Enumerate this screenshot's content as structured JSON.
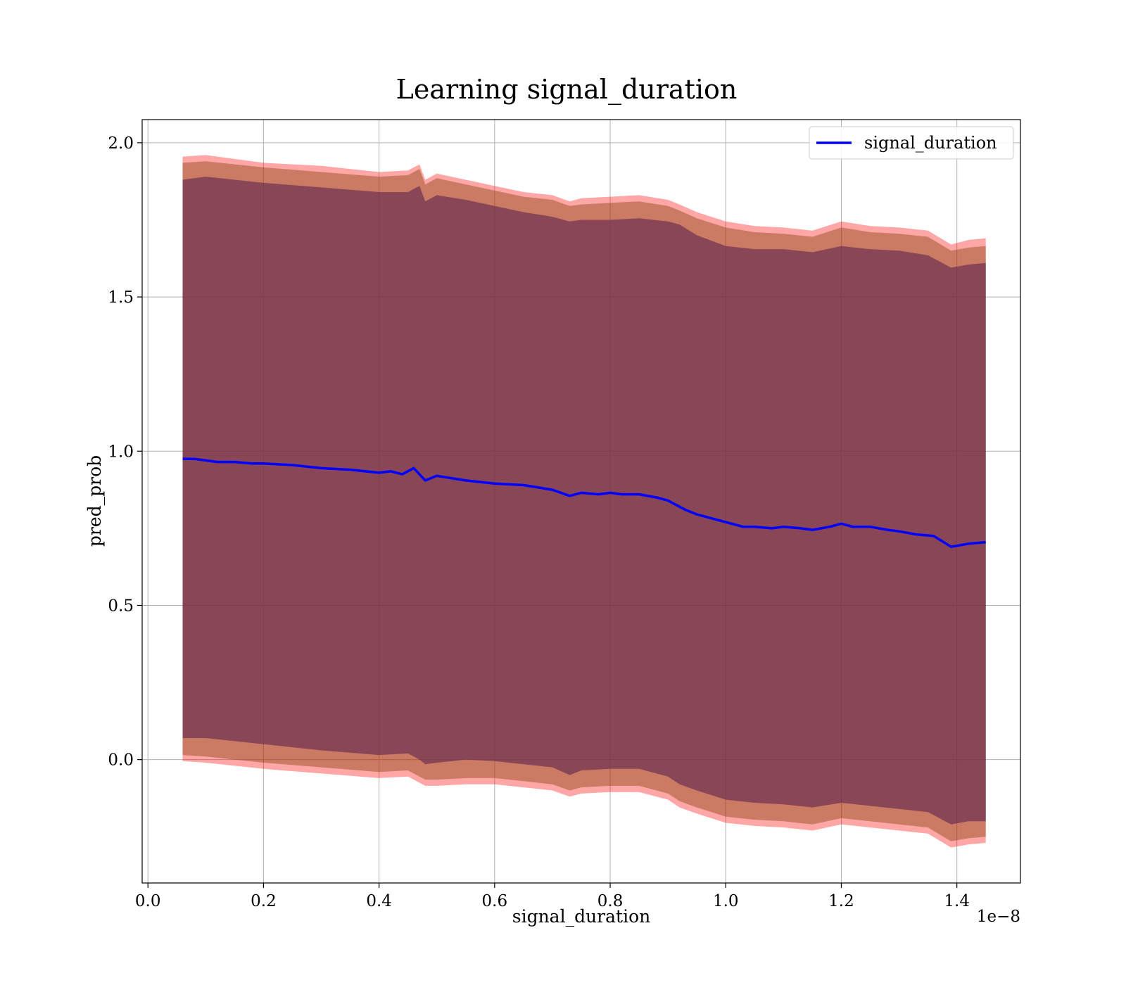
{
  "chart_data": {
    "type": "line",
    "title": "Learning signal_duration",
    "xlabel": "signal_duration",
    "ylabel": "pred_prob",
    "x_offset_label": "1e−8",
    "xlim": [
      -0.01,
      1.51
    ],
    "ylim": [
      -0.4,
      2.075
    ],
    "x_ticks": [
      0.0,
      0.2,
      0.4,
      0.6,
      0.8,
      1.0,
      1.2,
      1.4
    ],
    "x_tick_labels": [
      "0.0",
      "0.2",
      "0.4",
      "0.6",
      "0.8",
      "1.0",
      "1.2",
      "1.4"
    ],
    "y_ticks": [
      0.0,
      0.5,
      1.0,
      1.5,
      2.0
    ],
    "y_tick_labels": [
      "0.0",
      "0.5",
      "1.0",
      "1.5",
      "2.0"
    ],
    "grid": true,
    "legend_position": "top-right",
    "series": [
      {
        "name": "signal_duration",
        "color": "#0000ff",
        "x": [
          0.06,
          0.08,
          0.1,
          0.12,
          0.15,
          0.18,
          0.2,
          0.25,
          0.3,
          0.35,
          0.4,
          0.42,
          0.44,
          0.46,
          0.48,
          0.5,
          0.55,
          0.6,
          0.65,
          0.7,
          0.73,
          0.75,
          0.78,
          0.8,
          0.82,
          0.85,
          0.88,
          0.9,
          0.93,
          0.95,
          1.0,
          1.03,
          1.05,
          1.08,
          1.1,
          1.13,
          1.15,
          1.18,
          1.2,
          1.22,
          1.25,
          1.28,
          1.3,
          1.33,
          1.36,
          1.39,
          1.42,
          1.45
        ],
        "values": [
          0.975,
          0.975,
          0.97,
          0.965,
          0.965,
          0.96,
          0.96,
          0.955,
          0.945,
          0.94,
          0.93,
          0.935,
          0.925,
          0.945,
          0.905,
          0.92,
          0.905,
          0.895,
          0.89,
          0.875,
          0.855,
          0.865,
          0.86,
          0.865,
          0.86,
          0.86,
          0.85,
          0.84,
          0.81,
          0.795,
          0.77,
          0.755,
          0.755,
          0.75,
          0.755,
          0.75,
          0.745,
          0.755,
          0.765,
          0.755,
          0.755,
          0.745,
          0.74,
          0.73,
          0.725,
          0.69,
          0.7,
          0.705
        ]
      }
    ],
    "bands": [
      {
        "name": "outer",
        "color": "#ff0000",
        "x": [
          0.06,
          0.1,
          0.2,
          0.3,
          0.4,
          0.45,
          0.47,
          0.48,
          0.5,
          0.55,
          0.6,
          0.65,
          0.7,
          0.73,
          0.75,
          0.8,
          0.85,
          0.9,
          0.92,
          0.95,
          1.0,
          1.05,
          1.1,
          1.15,
          1.2,
          1.25,
          1.3,
          1.35,
          1.39,
          1.42,
          1.45
        ],
        "upper": [
          1.955,
          1.96,
          1.935,
          1.925,
          1.905,
          1.91,
          1.93,
          1.88,
          1.9,
          1.88,
          1.86,
          1.84,
          1.83,
          1.81,
          1.82,
          1.825,
          1.83,
          1.815,
          1.8,
          1.775,
          1.745,
          1.73,
          1.725,
          1.715,
          1.745,
          1.73,
          1.725,
          1.715,
          1.67,
          1.685,
          1.69
        ],
        "lower": [
          -0.005,
          -0.01,
          -0.03,
          -0.045,
          -0.06,
          -0.055,
          -0.075,
          -0.085,
          -0.085,
          -0.08,
          -0.08,
          -0.09,
          -0.1,
          -0.12,
          -0.11,
          -0.105,
          -0.105,
          -0.13,
          -0.155,
          -0.175,
          -0.205,
          -0.215,
          -0.22,
          -0.23,
          -0.21,
          -0.22,
          -0.23,
          -0.24,
          -0.285,
          -0.275,
          -0.27
        ]
      },
      {
        "name": "middle",
        "color": "#8b4513",
        "x": [
          0.06,
          0.1,
          0.2,
          0.3,
          0.4,
          0.45,
          0.47,
          0.48,
          0.5,
          0.55,
          0.6,
          0.65,
          0.7,
          0.73,
          0.75,
          0.8,
          0.85,
          0.9,
          0.92,
          0.95,
          1.0,
          1.05,
          1.1,
          1.15,
          1.2,
          1.25,
          1.3,
          1.35,
          1.39,
          1.42,
          1.45
        ],
        "upper": [
          1.935,
          1.94,
          1.92,
          1.905,
          1.89,
          1.895,
          1.915,
          1.865,
          1.885,
          1.865,
          1.845,
          1.825,
          1.815,
          1.795,
          1.8,
          1.805,
          1.81,
          1.795,
          1.78,
          1.755,
          1.725,
          1.71,
          1.705,
          1.695,
          1.725,
          1.71,
          1.705,
          1.695,
          1.65,
          1.66,
          1.665
        ],
        "lower": [
          0.015,
          0.01,
          -0.01,
          -0.025,
          -0.04,
          -0.035,
          -0.055,
          -0.065,
          -0.065,
          -0.06,
          -0.06,
          -0.07,
          -0.08,
          -0.1,
          -0.09,
          -0.085,
          -0.085,
          -0.11,
          -0.135,
          -0.155,
          -0.185,
          -0.195,
          -0.2,
          -0.21,
          -0.19,
          -0.2,
          -0.21,
          -0.22,
          -0.265,
          -0.255,
          -0.25
        ]
      },
      {
        "name": "inner",
        "color": "#6b3050",
        "x": [
          0.06,
          0.1,
          0.2,
          0.3,
          0.4,
          0.45,
          0.47,
          0.48,
          0.5,
          0.55,
          0.6,
          0.65,
          0.7,
          0.73,
          0.75,
          0.8,
          0.85,
          0.9,
          0.92,
          0.95,
          1.0,
          1.05,
          1.1,
          1.15,
          1.2,
          1.25,
          1.3,
          1.35,
          1.39,
          1.42,
          1.45
        ],
        "upper": [
          1.88,
          1.89,
          1.87,
          1.855,
          1.84,
          1.84,
          1.86,
          1.81,
          1.83,
          1.815,
          1.795,
          1.775,
          1.76,
          1.745,
          1.75,
          1.75,
          1.755,
          1.745,
          1.735,
          1.7,
          1.665,
          1.655,
          1.655,
          1.645,
          1.665,
          1.655,
          1.65,
          1.635,
          1.595,
          1.605,
          1.61
        ],
        "lower": [
          0.07,
          0.07,
          0.05,
          0.03,
          0.015,
          0.02,
          0.0,
          -0.015,
          -0.01,
          0.0,
          -0.005,
          -0.015,
          -0.025,
          -0.05,
          -0.035,
          -0.03,
          -0.03,
          -0.055,
          -0.08,
          -0.1,
          -0.13,
          -0.14,
          -0.145,
          -0.155,
          -0.14,
          -0.15,
          -0.16,
          -0.17,
          -0.21,
          -0.2,
          -0.2
        ]
      }
    ]
  }
}
